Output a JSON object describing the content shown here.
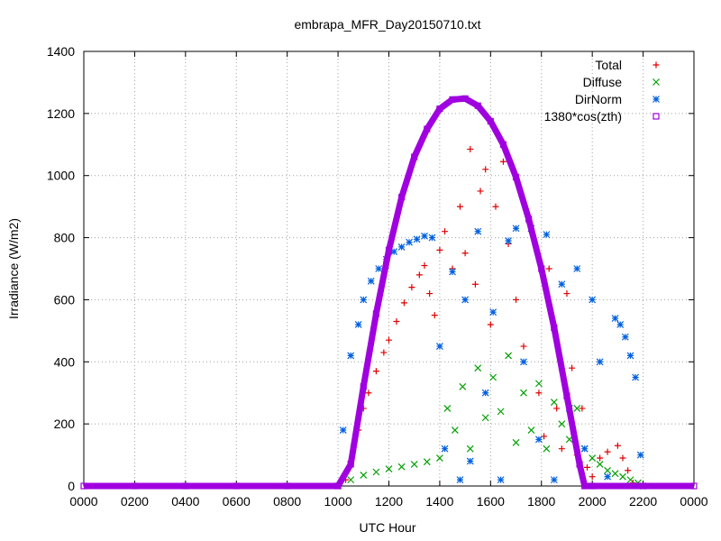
{
  "chart_data": {
    "type": "scatter",
    "title": "embrapa_MFR_Day20150710.txt",
    "xlabel": "UTC Hour",
    "ylabel": "Irradiance (W/m2)",
    "xlim": [
      0,
      24
    ],
    "ylim": [
      0,
      1400
    ],
    "x_ticks": [
      "0000",
      "0200",
      "0400",
      "0600",
      "0800",
      "1000",
      "1200",
      "1400",
      "1600",
      "1800",
      "2000",
      "2200",
      "0000"
    ],
    "y_ticks": [
      "0",
      "200",
      "400",
      "600",
      "800",
      "1000",
      "1200",
      "1400"
    ],
    "grid": true,
    "legend_position": "top-right",
    "series": [
      {
        "name": "Total",
        "color": "#e00000",
        "marker": "plus",
        "values": [
          [
            10.3,
            20
          ],
          [
            10.5,
            80
          ],
          [
            10.8,
            180
          ],
          [
            11.0,
            250
          ],
          [
            11.2,
            300
          ],
          [
            11.5,
            370
          ],
          [
            11.8,
            430
          ],
          [
            12.0,
            470
          ],
          [
            12.3,
            530
          ],
          [
            12.6,
            590
          ],
          [
            12.9,
            640
          ],
          [
            13.2,
            680
          ],
          [
            13.4,
            710
          ],
          [
            13.6,
            620
          ],
          [
            13.8,
            550
          ],
          [
            14.0,
            760
          ],
          [
            14.2,
            820
          ],
          [
            14.5,
            700
          ],
          [
            14.8,
            900
          ],
          [
            15.0,
            750
          ],
          [
            15.2,
            1085
          ],
          [
            15.4,
            650
          ],
          [
            15.6,
            950
          ],
          [
            15.8,
            1020
          ],
          [
            16.0,
            520
          ],
          [
            16.2,
            900
          ],
          [
            16.5,
            1045
          ],
          [
            16.7,
            780
          ],
          [
            17.0,
            600
          ],
          [
            17.3,
            450
          ],
          [
            17.6,
            820
          ],
          [
            17.9,
            300
          ],
          [
            18.1,
            160
          ],
          [
            18.3,
            700
          ],
          [
            18.6,
            250
          ],
          [
            18.8,
            120
          ],
          [
            19.0,
            620
          ],
          [
            19.2,
            380
          ],
          [
            19.4,
            100
          ],
          [
            19.6,
            250
          ],
          [
            19.8,
            60
          ],
          [
            20.0,
            30
          ],
          [
            20.3,
            90
          ],
          [
            20.6,
            110
          ],
          [
            21.0,
            130
          ],
          [
            21.2,
            90
          ],
          [
            21.4,
            50
          ],
          [
            21.6,
            10
          ]
        ]
      },
      {
        "name": "Diffuse",
        "color": "#00a000",
        "marker": "cross",
        "values": [
          [
            10.5,
            20
          ],
          [
            11.0,
            35
          ],
          [
            11.5,
            45
          ],
          [
            12.0,
            55
          ],
          [
            12.5,
            62
          ],
          [
            13.0,
            70
          ],
          [
            13.5,
            78
          ],
          [
            14.0,
            90
          ],
          [
            14.3,
            250
          ],
          [
            14.6,
            180
          ],
          [
            14.9,
            320
          ],
          [
            15.2,
            120
          ],
          [
            15.5,
            380
          ],
          [
            15.8,
            220
          ],
          [
            16.1,
            350
          ],
          [
            16.4,
            240
          ],
          [
            16.7,
            420
          ],
          [
            17.0,
            140
          ],
          [
            17.3,
            300
          ],
          [
            17.6,
            180
          ],
          [
            17.9,
            330
          ],
          [
            18.2,
            120
          ],
          [
            18.5,
            270
          ],
          [
            18.8,
            200
          ],
          [
            19.1,
            150
          ],
          [
            19.4,
            250
          ],
          [
            19.7,
            120
          ],
          [
            20.0,
            90
          ],
          [
            20.3,
            70
          ],
          [
            20.6,
            50
          ],
          [
            20.9,
            40
          ],
          [
            21.2,
            30
          ],
          [
            21.5,
            20
          ],
          [
            21.8,
            10
          ]
        ]
      },
      {
        "name": "DirNorm",
        "color": "#0060e0",
        "marker": "star",
        "values": [
          [
            10.0,
            0
          ],
          [
            10.2,
            180
          ],
          [
            10.5,
            420
          ],
          [
            10.8,
            520
          ],
          [
            11.0,
            600
          ],
          [
            11.3,
            660
          ],
          [
            11.6,
            700
          ],
          [
            11.9,
            730
          ],
          [
            12.2,
            755
          ],
          [
            12.5,
            770
          ],
          [
            12.8,
            785
          ],
          [
            13.1,
            795
          ],
          [
            13.4,
            805
          ],
          [
            13.7,
            800
          ],
          [
            14.0,
            450
          ],
          [
            14.2,
            120
          ],
          [
            14.5,
            690
          ],
          [
            14.8,
            20
          ],
          [
            15.0,
            600
          ],
          [
            15.2,
            80
          ],
          [
            15.5,
            820
          ],
          [
            15.8,
            300
          ],
          [
            16.1,
            560
          ],
          [
            16.4,
            20
          ],
          [
            16.7,
            790
          ],
          [
            17.0,
            830
          ],
          [
            17.3,
            400
          ],
          [
            17.6,
            830
          ],
          [
            17.9,
            150
          ],
          [
            18.2,
            810
          ],
          [
            18.5,
            20
          ],
          [
            18.8,
            650
          ],
          [
            19.1,
            250
          ],
          [
            19.4,
            700
          ],
          [
            19.7,
            120
          ],
          [
            20.0,
            600
          ],
          [
            20.3,
            400
          ],
          [
            20.6,
            30
          ],
          [
            20.9,
            540
          ],
          [
            21.1,
            520
          ],
          [
            21.3,
            480
          ],
          [
            21.5,
            420
          ],
          [
            21.7,
            350
          ],
          [
            21.9,
            100
          ],
          [
            22.0,
            0
          ]
        ]
      },
      {
        "name": "1380*cos(zth)",
        "color": "#a000e0",
        "marker": "square",
        "values": [
          [
            0,
            0
          ],
          [
            2,
            0
          ],
          [
            4,
            0
          ],
          [
            6,
            0
          ],
          [
            8,
            0
          ],
          [
            10,
            0
          ],
          [
            10.5,
            70
          ],
          [
            11.0,
            320
          ],
          [
            11.5,
            555
          ],
          [
            12.0,
            760
          ],
          [
            12.5,
            930
          ],
          [
            13.0,
            1060
          ],
          [
            13.5,
            1150
          ],
          [
            14.0,
            1215
          ],
          [
            14.5,
            1245
          ],
          [
            15.0,
            1248
          ],
          [
            15.5,
            1225
          ],
          [
            16.0,
            1175
          ],
          [
            16.5,
            1100
          ],
          [
            17.0,
            995
          ],
          [
            17.5,
            860
          ],
          [
            18.0,
            700
          ],
          [
            18.5,
            510
          ],
          [
            19.0,
            290
          ],
          [
            19.5,
            70
          ],
          [
            19.7,
            0
          ],
          [
            20,
            0
          ],
          [
            22,
            0
          ],
          [
            24,
            0
          ]
        ]
      }
    ]
  }
}
